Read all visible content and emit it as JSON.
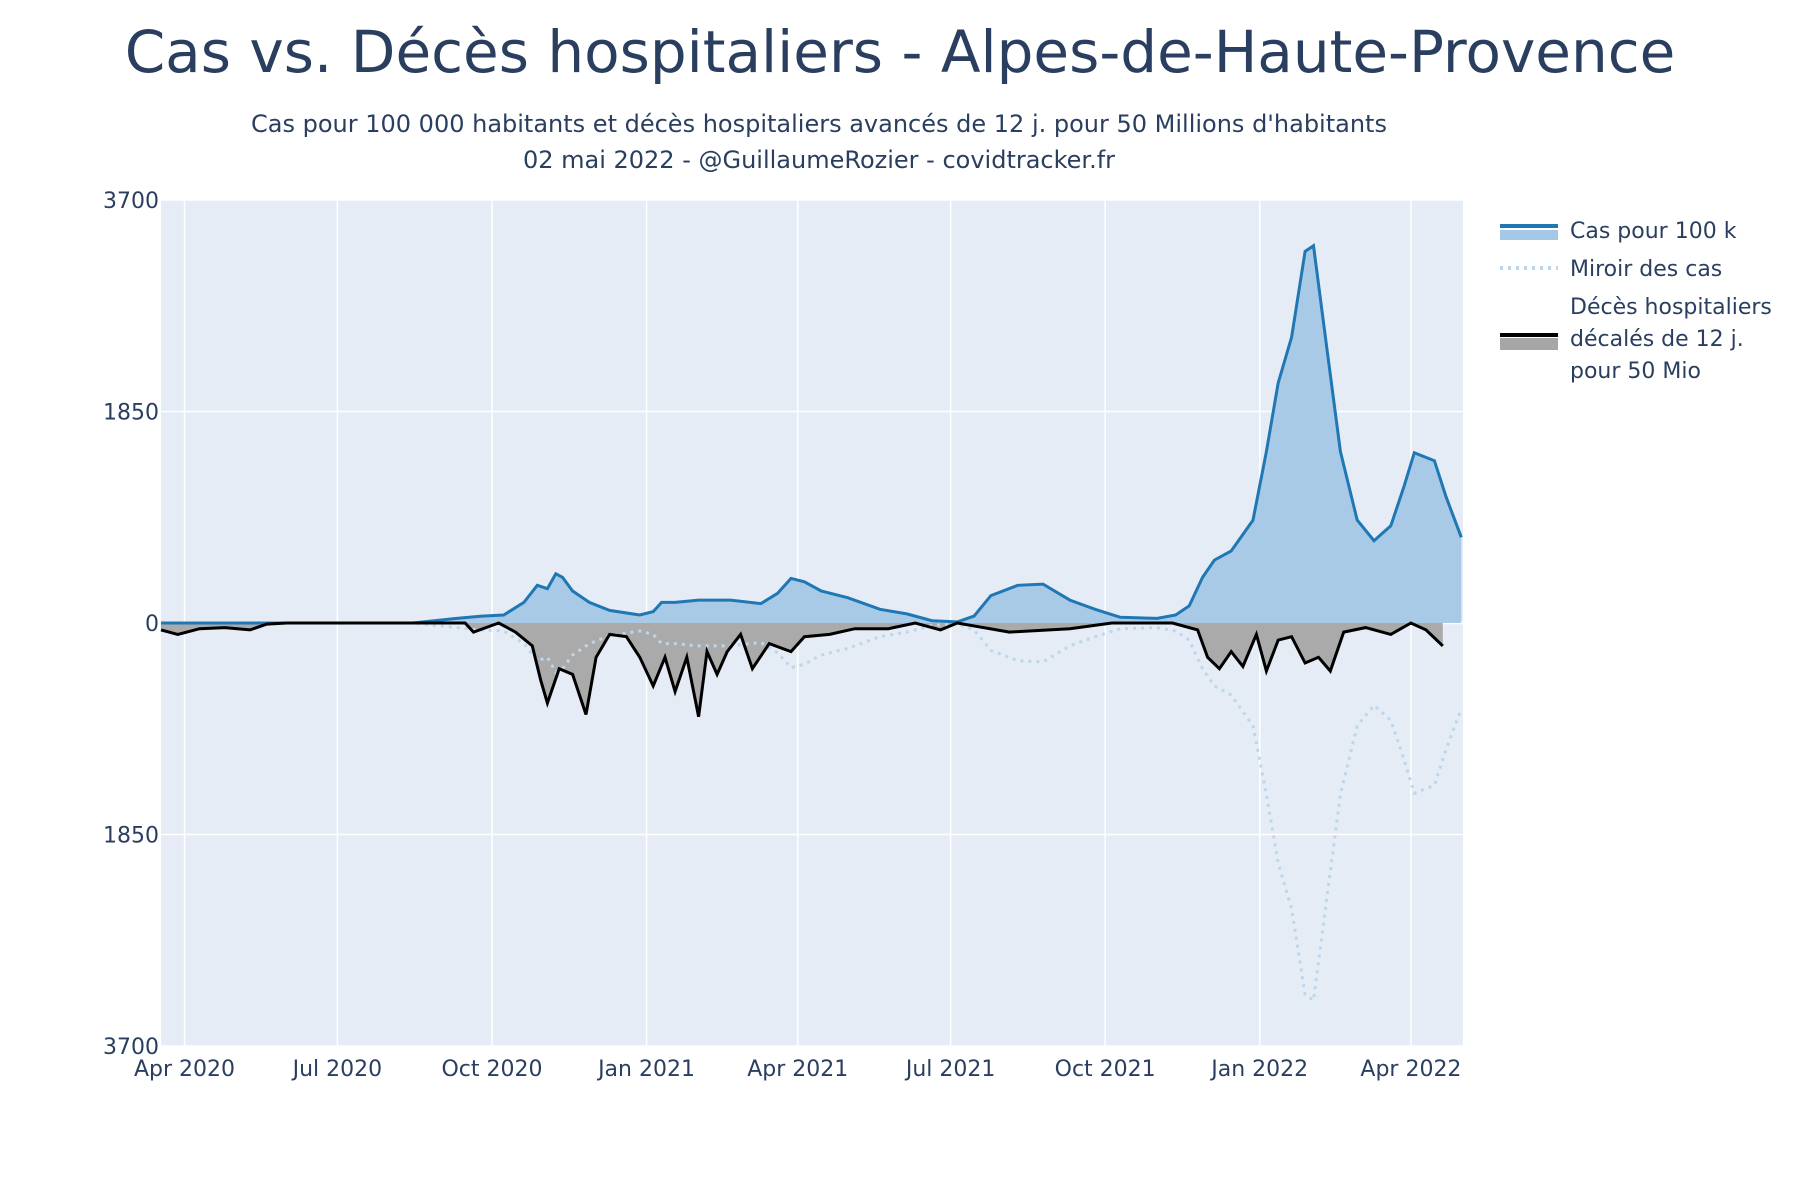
{
  "title": "Cas vs. Décès hospitaliers - Alpes-de-Haute-Provence",
  "subtitle_line1": "Cas pour 100 000 habitants et décès hospitaliers avancés de 12 j. pour 50 Millions d'habitants",
  "subtitle_line2": "02 mai 2022 - @GuillaumeRozier - covidtracker.fr",
  "colors": {
    "plot_bg": "#e5ecf6",
    "cases_line": "#1f77b4",
    "cases_fill": "#a4c8e6",
    "mirror_line": "#bcd6ec",
    "deaths_line": "#000000",
    "deaths_fill": "#a6a6a6"
  },
  "chart_data": {
    "type": "area",
    "x_axis": {
      "tick_labels": [
        "Apr 2020",
        "Jul 2020",
        "Oct 2020",
        "Jan 2021",
        "Apr 2021",
        "Jul 2021",
        "Oct 2021",
        "Jan 2022",
        "Apr 2022"
      ],
      "tick_dates": [
        "2020-04-01",
        "2020-07-01",
        "2020-10-01",
        "2021-01-01",
        "2021-04-01",
        "2021-07-01",
        "2021-10-01",
        "2022-01-01",
        "2022-04-01"
      ],
      "range": [
        "2020-03-18",
        "2022-05-02"
      ]
    },
    "y_axis": {
      "tick_labels": [
        "3700",
        "1850",
        "0",
        "1850",
        "3700"
      ],
      "tick_values": [
        3700,
        1850,
        0,
        -1850,
        -3700
      ],
      "range": [
        -3700,
        3700
      ]
    },
    "grid": true,
    "legend_placement": "right",
    "series": [
      {
        "name": "Cas pour 100 k",
        "style": "solid-filled",
        "points": [
          [
            "2020-03-18",
            0
          ],
          [
            "2020-05-01",
            0
          ],
          [
            "2020-08-15",
            0
          ],
          [
            "2020-09-10",
            40
          ],
          [
            "2020-09-25",
            60
          ],
          [
            "2020-10-08",
            70
          ],
          [
            "2020-10-20",
            180
          ],
          [
            "2020-10-28",
            330
          ],
          [
            "2020-11-03",
            300
          ],
          [
            "2020-11-08",
            430
          ],
          [
            "2020-11-12",
            400
          ],
          [
            "2020-11-18",
            280
          ],
          [
            "2020-11-28",
            180
          ],
          [
            "2020-12-10",
            110
          ],
          [
            "2020-12-28",
            70
          ],
          [
            "2021-01-05",
            100
          ],
          [
            "2021-01-10",
            180
          ],
          [
            "2021-01-18",
            180
          ],
          [
            "2021-02-01",
            200
          ],
          [
            "2021-02-20",
            200
          ],
          [
            "2021-03-10",
            170
          ],
          [
            "2021-03-20",
            260
          ],
          [
            "2021-03-28",
            390
          ],
          [
            "2021-04-05",
            360
          ],
          [
            "2021-04-15",
            280
          ],
          [
            "2021-05-01",
            220
          ],
          [
            "2021-05-20",
            120
          ],
          [
            "2021-06-05",
            80
          ],
          [
            "2021-06-20",
            20
          ],
          [
            "2021-07-05",
            10
          ],
          [
            "2021-07-15",
            60
          ],
          [
            "2021-07-25",
            240
          ],
          [
            "2021-08-10",
            330
          ],
          [
            "2021-08-25",
            340
          ],
          [
            "2021-09-10",
            200
          ],
          [
            "2021-09-25",
            120
          ],
          [
            "2021-10-10",
            50
          ],
          [
            "2021-11-01",
            40
          ],
          [
            "2021-11-12",
            70
          ],
          [
            "2021-11-20",
            150
          ],
          [
            "2021-11-28",
            400
          ],
          [
            "2021-12-05",
            550
          ],
          [
            "2021-12-15",
            630
          ],
          [
            "2021-12-28",
            900
          ],
          [
            "2022-01-05",
            1500
          ],
          [
            "2022-01-12",
            2100
          ],
          [
            "2022-01-20",
            2500
          ],
          [
            "2022-01-28",
            3250
          ],
          [
            "2022-02-02",
            3300
          ],
          [
            "2022-02-10",
            2400
          ],
          [
            "2022-02-18",
            1500
          ],
          [
            "2022-02-28",
            900
          ],
          [
            "2022-03-10",
            720
          ],
          [
            "2022-03-20",
            850
          ],
          [
            "2022-03-28",
            1200
          ],
          [
            "2022-04-03",
            1490
          ],
          [
            "2022-04-15",
            1420
          ],
          [
            "2022-04-22",
            1100
          ],
          [
            "2022-05-01",
            750
          ]
        ]
      },
      {
        "name": "Miroir des cas",
        "style": "dotted",
        "mirror_of": "Cas pour 100 k"
      },
      {
        "name": "Décès hospitaliers décalés de 12 j. pour 50 Mio",
        "legend_lines": [
          "Décès hospitaliers",
          "décalés de 12 j.",
          "pour 50 Mio"
        ],
        "style": "solid-filled",
        "points": [
          [
            "2020-03-18",
            -60
          ],
          [
            "2020-03-28",
            -100
          ],
          [
            "2020-04-10",
            -50
          ],
          [
            "2020-04-25",
            -40
          ],
          [
            "2020-05-10",
            -60
          ],
          [
            "2020-05-20",
            -10
          ],
          [
            "2020-06-01",
            0
          ],
          [
            "2020-09-15",
            0
          ],
          [
            "2020-09-20",
            -80
          ],
          [
            "2020-10-05",
            0
          ],
          [
            "2020-10-15",
            -80
          ],
          [
            "2020-10-25",
            -200
          ],
          [
            "2020-10-30",
            -500
          ],
          [
            "2020-11-03",
            -700
          ],
          [
            "2020-11-10",
            -400
          ],
          [
            "2020-11-18",
            -450
          ],
          [
            "2020-11-26",
            -800
          ],
          [
            "2020-12-02",
            -300
          ],
          [
            "2020-12-10",
            -100
          ],
          [
            "2020-12-20",
            -120
          ],
          [
            "2020-12-28",
            -300
          ],
          [
            "2021-01-05",
            -550
          ],
          [
            "2021-01-12",
            -300
          ],
          [
            "2021-01-18",
            -600
          ],
          [
            "2021-01-25",
            -300
          ],
          [
            "2021-02-01",
            -820
          ],
          [
            "2021-02-06",
            -250
          ],
          [
            "2021-02-12",
            -450
          ],
          [
            "2021-02-18",
            -250
          ],
          [
            "2021-02-26",
            -100
          ],
          [
            "2021-03-05",
            -400
          ],
          [
            "2021-03-15",
            -180
          ],
          [
            "2021-03-28",
            -250
          ],
          [
            "2021-04-05",
            -120
          ],
          [
            "2021-04-20",
            -100
          ],
          [
            "2021-05-05",
            -50
          ],
          [
            "2021-05-25",
            -50
          ],
          [
            "2021-06-10",
            0
          ],
          [
            "2021-06-25",
            -60
          ],
          [
            "2021-07-05",
            0
          ],
          [
            "2021-08-05",
            -80
          ],
          [
            "2021-09-10",
            -50
          ],
          [
            "2021-10-05",
            0
          ],
          [
            "2021-11-10",
            0
          ],
          [
            "2021-11-25",
            -60
          ],
          [
            "2021-12-01",
            -300
          ],
          [
            "2021-12-08",
            -400
          ],
          [
            "2021-12-15",
            -250
          ],
          [
            "2021-12-22",
            -380
          ],
          [
            "2021-12-30",
            -100
          ],
          [
            "2022-01-05",
            -420
          ],
          [
            "2022-01-12",
            -150
          ],
          [
            "2022-01-20",
            -120
          ],
          [
            "2022-01-28",
            -350
          ],
          [
            "2022-02-05",
            -300
          ],
          [
            "2022-02-12",
            -420
          ],
          [
            "2022-02-20",
            -80
          ],
          [
            "2022-03-05",
            -40
          ],
          [
            "2022-03-20",
            -100
          ],
          [
            "2022-04-01",
            0
          ],
          [
            "2022-04-10",
            -60
          ],
          [
            "2022-04-20",
            -200
          ]
        ]
      }
    ]
  }
}
